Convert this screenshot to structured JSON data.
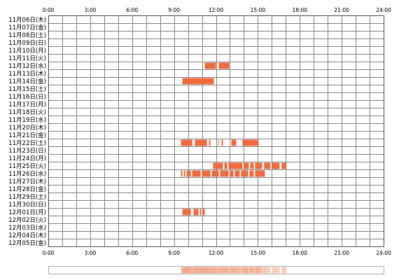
{
  "chart_data": {
    "type": "timeline",
    "x_tick_labels": [
      "0:00",
      "3:00",
      "6:00",
      "9:00",
      "12:00",
      "15:00",
      "18:00",
      "21:00",
      "24:00"
    ],
    "xlim": [
      0,
      24
    ],
    "x_minor_step_hours": 1,
    "grid": true,
    "days": [
      "11月06日(木)",
      "11月07日(金)",
      "11月08日(土)",
      "11月09日(日)",
      "11月10日(月)",
      "11月11日(火)",
      "11月12日(水)",
      "11月13日(木)",
      "11月14日(金)",
      "11月15日(土)",
      "11月16日(日)",
      "11月17日(月)",
      "11月18日(火)",
      "11月19日(水)",
      "11月20日(木)",
      "11月21日(金)",
      "11月22日(土)",
      "11月23日(日)",
      "11月24日(月)",
      "11月25日(火)",
      "11月26日(水)",
      "11月27日(木)",
      "11月28日(金)",
      "11月29日(土)",
      "11月30日(日)",
      "12月01日(月)",
      "12月02日(火)",
      "12月03日(水)",
      "12月04日(木)",
      "12月05日(金)"
    ],
    "active_intervals": [
      {
        "day": 6,
        "start": 11.2,
        "end": 12.0
      },
      {
        "day": 6,
        "start": 12.2,
        "end": 12.95
      },
      {
        "day": 8,
        "start": 9.6,
        "end": 11.85
      },
      {
        "day": 16,
        "start": 9.5,
        "end": 10.3
      },
      {
        "day": 16,
        "start": 10.5,
        "end": 11.35
      },
      {
        "day": 16,
        "start": 11.5,
        "end": 11.6
      },
      {
        "day": 16,
        "start": 12.15,
        "end": 12.2
      },
      {
        "day": 16,
        "start": 12.4,
        "end": 12.5
      },
      {
        "day": 16,
        "start": 13.1,
        "end": 13.45
      },
      {
        "day": 16,
        "start": 13.9,
        "end": 15.05
      },
      {
        "day": 19,
        "start": 11.8,
        "end": 12.5
      },
      {
        "day": 19,
        "start": 12.6,
        "end": 12.8
      },
      {
        "day": 19,
        "start": 12.9,
        "end": 13.9
      },
      {
        "day": 19,
        "start": 14.0,
        "end": 14.35
      },
      {
        "day": 19,
        "start": 14.45,
        "end": 14.7
      },
      {
        "day": 19,
        "start": 14.8,
        "end": 15.3
      },
      {
        "day": 19,
        "start": 15.45,
        "end": 15.9
      },
      {
        "day": 19,
        "start": 16.0,
        "end": 16.55
      },
      {
        "day": 19,
        "start": 16.7,
        "end": 17.05
      },
      {
        "day": 20,
        "start": 9.5,
        "end": 9.6
      },
      {
        "day": 20,
        "start": 9.7,
        "end": 9.8
      },
      {
        "day": 20,
        "start": 9.9,
        "end": 10.2
      },
      {
        "day": 20,
        "start": 10.3,
        "end": 10.9
      },
      {
        "day": 20,
        "start": 11.0,
        "end": 11.6
      },
      {
        "day": 20,
        "start": 11.7,
        "end": 12.2
      },
      {
        "day": 20,
        "start": 12.3,
        "end": 12.9
      },
      {
        "day": 20,
        "start": 13.0,
        "end": 13.25
      },
      {
        "day": 20,
        "start": 13.35,
        "end": 13.7
      },
      {
        "day": 20,
        "start": 13.8,
        "end": 14.3
      },
      {
        "day": 20,
        "start": 14.4,
        "end": 14.7
      },
      {
        "day": 20,
        "start": 14.8,
        "end": 15.5
      },
      {
        "day": 25,
        "start": 9.6,
        "end": 10.2
      },
      {
        "day": 25,
        "start": 10.4,
        "end": 10.75
      },
      {
        "day": 25,
        "start": 10.85,
        "end": 10.95
      },
      {
        "day": 25,
        "start": 11.05,
        "end": 11.2
      }
    ],
    "colors": {
      "bar": "#f26b3f",
      "grid": "#8a8a8a",
      "frame": "#555555",
      "summary_border": "#b0b0b0",
      "summary_fill": "#f3a585",
      "summary_bg": "#ffffff"
    }
  }
}
